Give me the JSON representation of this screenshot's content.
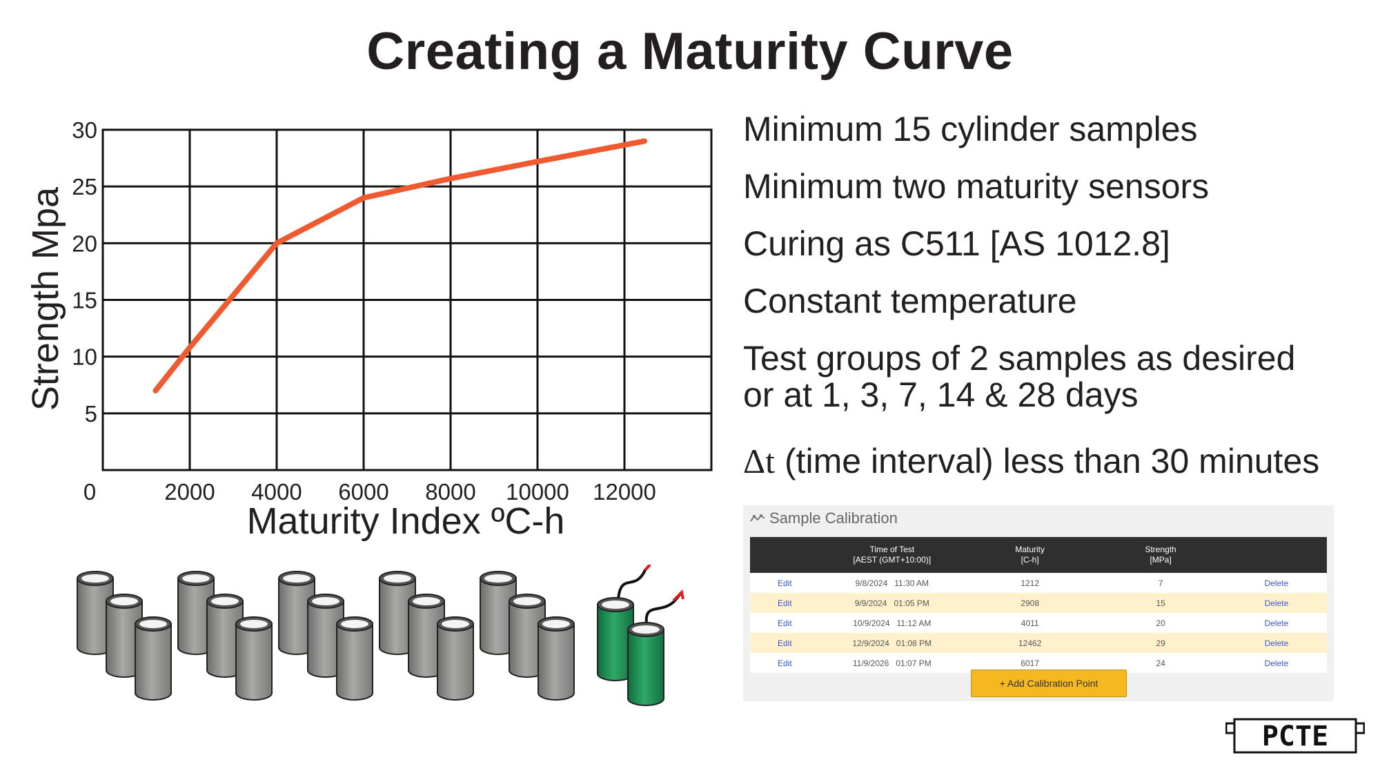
{
  "title": "Creating a Maturity Curve",
  "bullets": [
    "Minimum 15 cylinder samples",
    "Minimum two maturity sensors",
    "Curing as C511 [AS 1012.8]",
    "Constant temperature",
    "Test groups of 2 samples as desired",
    "or at 1, 3, 7, 14 & 28 days"
  ],
  "delta_line": {
    "symbol": "Δt",
    "text": " (time interval) less than 30 minutes"
  },
  "chart_data": {
    "type": "line",
    "xlabel": "Maturity Index ºC-h",
    "ylabel": "Strength Mpa",
    "xlim": [
      0,
      14000
    ],
    "ylim": [
      0,
      30
    ],
    "x_ticks": [
      "0",
      "2000",
      "4000",
      "6000",
      "8000",
      "10000",
      "12000"
    ],
    "y_ticks": [
      "5",
      "10",
      "15",
      "20",
      "25",
      "30"
    ],
    "grid": true,
    "series": [
      {
        "color": "#f05a30",
        "x": [
          1212,
          2000,
          4000,
          6000,
          8000,
          10000,
          12462
        ],
        "y": [
          7,
          10.8,
          20,
          24,
          25.7,
          27.2,
          29
        ]
      }
    ]
  },
  "calibration": {
    "heading": "Sample Calibration",
    "columns": [
      "",
      "Time of Test\n[AEST (GMT+10:00)]",
      "Maturity\n[C-h]",
      "Strength\n[MPa]",
      ""
    ],
    "rows": [
      [
        "Edit",
        "9/8/2024   11:30 AM",
        "1212",
        "7",
        "Delete"
      ],
      [
        "Edit",
        "9/9/2024   01:05 PM",
        "2908",
        "15",
        "Delete"
      ],
      [
        "Edit",
        "10/9/2024   11:12 AM",
        "4011",
        "20",
        "Delete"
      ],
      [
        "Edit",
        "12/9/2024   01:08 PM",
        "12462",
        "29",
        "Delete"
      ],
      [
        "Edit",
        "11/9/2026   01:07 PM",
        "6017",
        "24",
        "Delete"
      ]
    ],
    "add_button": "+ Add Calibration Point"
  },
  "logo": "PCTE",
  "colors": {
    "curve": "#f05a30",
    "cylinder": "#8a8a88",
    "sensor_cylinder": "#1f8a52",
    "table_header": "#2f2f2f",
    "row_highlight": "#fff1cc",
    "button": "#f5b91f"
  }
}
